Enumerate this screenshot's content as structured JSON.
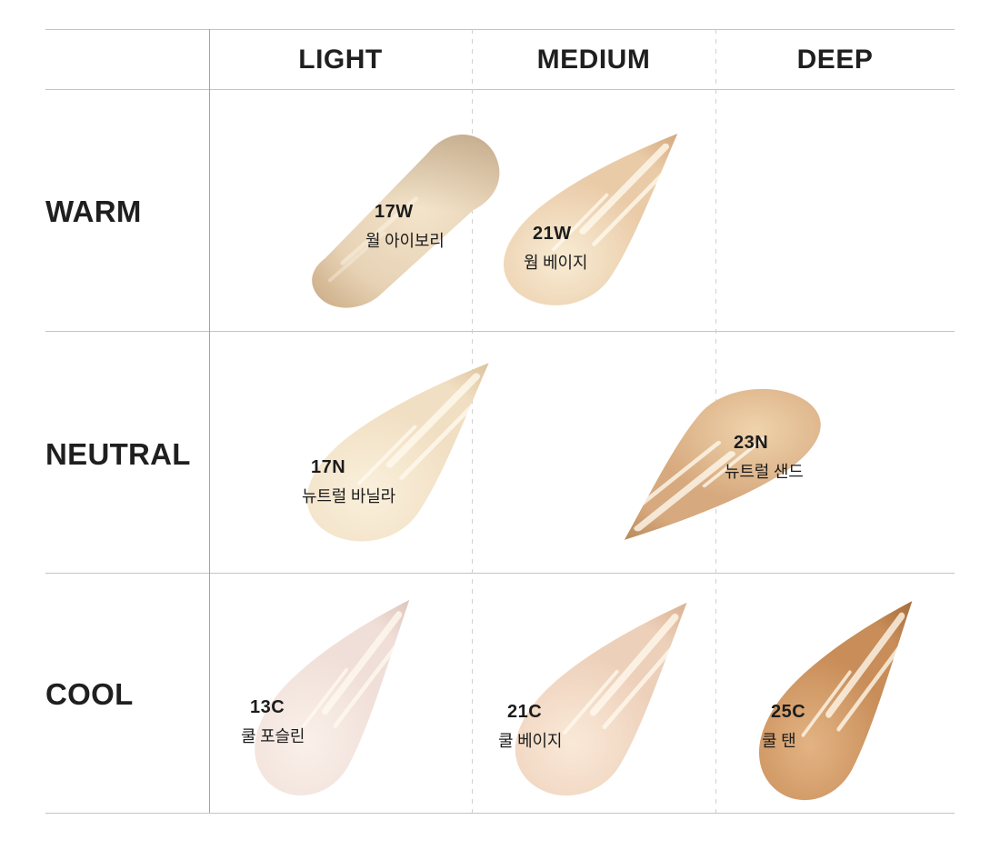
{
  "table": {
    "column_headers": [
      "LIGHT",
      "MEDIUM",
      "DEEP"
    ],
    "row_headers": [
      "WARM",
      "NEUTRAL",
      "COOL"
    ]
  },
  "shades": [
    {
      "code": "17W",
      "name": "월 아이보리",
      "tone": "WARM",
      "depth": "LIGHT",
      "colors": {
        "light": "#F3E4CA",
        "mid": "#E7D2B5",
        "dark": "#C3A076"
      }
    },
    {
      "code": "21W",
      "name": "웜 베이지",
      "tone": "WARM",
      "depth": "MEDIUM",
      "colors": {
        "light": "#F8ECD4",
        "mid": "#EACBA8",
        "dark": "#CB9B6E"
      }
    },
    {
      "code": "17N",
      "name": "뉴트럴 바닐라",
      "tone": "NEUTRAL",
      "depth": "LIGHT",
      "colors": {
        "light": "#FAF0DC",
        "mid": "#F1DFC3",
        "dark": "#D4B88D"
      }
    },
    {
      "code": "23N",
      "name": "뉴트럴 샌드",
      "tone": "NEUTRAL",
      "depth": "DEEP",
      "colors": {
        "light": "#EFD3AC",
        "mid": "#D7A97E",
        "dark": "#AF7E4F"
      }
    },
    {
      "code": "13C",
      "name": "쿨 포슬린",
      "tone": "COOL",
      "depth": "LIGHT",
      "colors": {
        "light": "#FAF0EA",
        "mid": "#F0DFD8",
        "dark": "#D8BDB2"
      }
    },
    {
      "code": "21C",
      "name": "쿨 베이지",
      "tone": "COOL",
      "depth": "MEDIUM",
      "colors": {
        "light": "#FAE9D8",
        "mid": "#EDD0BA",
        "dark": "#D2A683"
      }
    },
    {
      "code": "25C",
      "name": "쿨 탠",
      "tone": "COOL",
      "depth": "DEEP",
      "colors": {
        "light": "#E3B383",
        "mid": "#C88D58",
        "dark": "#99622F"
      }
    }
  ],
  "chart_data": {
    "type": "table",
    "title": "Foundation shade matrix by undertone and depth",
    "columns": [
      "LIGHT",
      "MEDIUM",
      "DEEP"
    ],
    "rows": [
      "WARM",
      "NEUTRAL",
      "COOL"
    ],
    "cells": [
      [
        {
          "code": "17W",
          "name": "월 아이보리",
          "swatch_color": "#E7D2B5"
        },
        {
          "code": "21W",
          "name": "웜 베이지",
          "swatch_color": "#EACBA8"
        },
        null
      ],
      [
        {
          "code": "17N",
          "name": "뉴트럴 바닐라",
          "swatch_color": "#F1DFC3"
        },
        null,
        {
          "code": "23N",
          "name": "뉴트럴 샌드",
          "swatch_color": "#D7A97E"
        }
      ],
      [
        {
          "code": "13C",
          "name": "쿨 포슬린",
          "swatch_color": "#F0DFD8"
        },
        {
          "code": "21C",
          "name": "쿨 베이지",
          "swatch_color": "#EDD0BA"
        },
        {
          "code": "25C",
          "name": "쿨 탠",
          "swatch_color": "#C88D58"
        }
      ]
    ],
    "layout": {
      "grid": "solid vertical separator after row-header column, dashed vertical separators between shade columns, horizontal rules between rows"
    }
  }
}
